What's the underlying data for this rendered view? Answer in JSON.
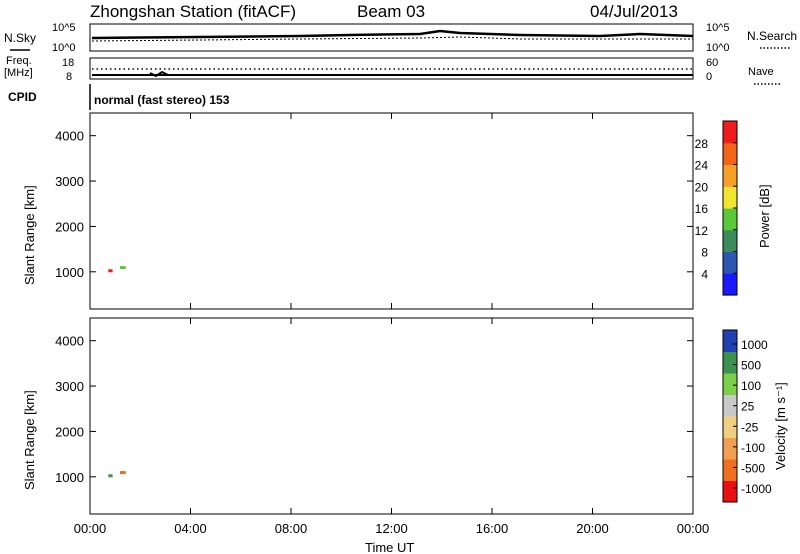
{
  "header": {
    "station": "Zhongshan Station (fitACF)",
    "beam": "Beam 03",
    "date": "04/Jul/2013"
  },
  "small_panels": {
    "nsky_label": "N.Sky",
    "nsearch_label": "N.Search",
    "freq_label_1": "Freq.",
    "freq_label_2": "[MHz]",
    "nave_label": "Nave",
    "cpid_label": "CPID",
    "noise_ticks": [
      "10^5",
      "10^0"
    ],
    "freq_ticks": [
      "18",
      "8"
    ],
    "nave_ticks": [
      "60",
      "0"
    ],
    "cpid_text": "normal (fast stereo) 153"
  },
  "colors": {
    "power": [
      "#1a1aff",
      "#2d55b4",
      "#3b8c5a",
      "#5ac838",
      "#f0e632",
      "#f5a028",
      "#f26418",
      "#ee1c1c"
    ],
    "velocity": [
      "#e81010",
      "#f07020",
      "#f0a050",
      "#f0d080",
      "#c8c8c8",
      "#7ad048",
      "#3c9050",
      "#2040b0"
    ]
  },
  "chart_data": [
    {
      "type": "heatmap",
      "name": "power",
      "xlabel": "",
      "ylabel": "Slant Range [km]",
      "yticks": [
        "1000",
        "2000",
        "3000",
        "4000"
      ],
      "ylim": [
        180,
        4500
      ],
      "xlim_hours": [
        0,
        24
      ],
      "colorbar_label": "Power [dB]",
      "colorbar_ticks": [
        "4",
        "8",
        "12",
        "16",
        "20",
        "24",
        "28"
      ],
      "colorbar_range": [
        0,
        32
      ]
    },
    {
      "type": "heatmap",
      "name": "velocity",
      "xlabel": "Time UT",
      "ylabel": "Slant Range [km]",
      "yticks": [
        "1000",
        "2000",
        "3000",
        "4000"
      ],
      "ylim": [
        180,
        4500
      ],
      "xlim_hours": [
        0,
        24
      ],
      "xticks": [
        "00:00",
        "04:00",
        "08:00",
        "12:00",
        "16:00",
        "20:00",
        "00:00"
      ],
      "colorbar_label": "Velocity [m s⁻¹]",
      "colorbar_ticks": [
        "1000",
        "500",
        "100",
        "25",
        "-25",
        "-100",
        "-500",
        "-1000"
      ]
    }
  ]
}
